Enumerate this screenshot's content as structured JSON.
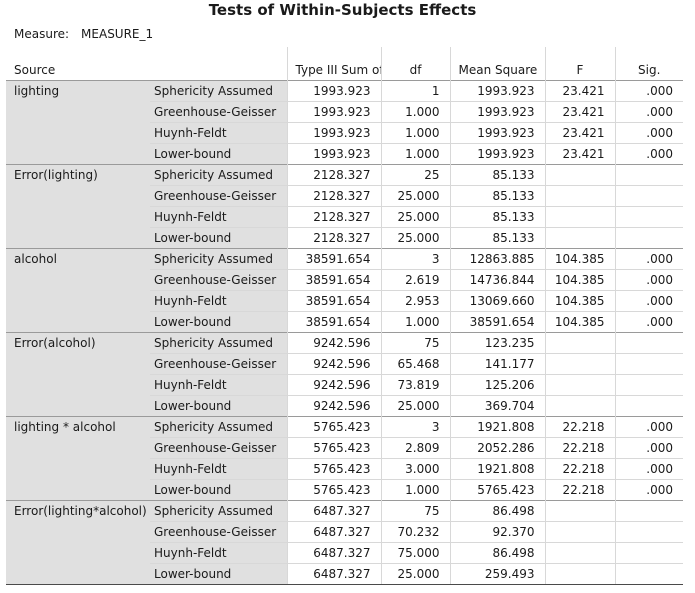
{
  "title": "Tests of Within-Subjects Effects",
  "measure": {
    "label": "Measure:",
    "value": "MEASURE_1"
  },
  "table": {
    "headers": [
      "Source",
      "Type III Sum of Squares",
      "df",
      "Mean Square",
      "F",
      "Sig."
    ],
    "groups": [
      {
        "source": "lighting",
        "rows": [
          [
            "Sphericity Assumed",
            "1993.923",
            "1",
            "1993.923",
            "23.421",
            ".000"
          ],
          [
            "Greenhouse-Geisser",
            "1993.923",
            "1.000",
            "1993.923",
            "23.421",
            ".000"
          ],
          [
            "Huynh-Feldt",
            "1993.923",
            "1.000",
            "1993.923",
            "23.421",
            ".000"
          ],
          [
            "Lower-bound",
            "1993.923",
            "1.000",
            "1993.923",
            "23.421",
            ".000"
          ]
        ]
      },
      {
        "source": "Error(lighting)",
        "rows": [
          [
            "Sphericity Assumed",
            "2128.327",
            "25",
            "85.133"
          ],
          [
            "Greenhouse-Geisser",
            "2128.327",
            "25.000",
            "85.133"
          ],
          [
            "Huynh-Feldt",
            "2128.327",
            "25.000",
            "85.133"
          ],
          [
            "Lower-bound",
            "2128.327",
            "25.000",
            "85.133"
          ]
        ]
      },
      {
        "source": "alcohol",
        "rows": [
          [
            "Sphericity Assumed",
            "38591.654",
            "3",
            "12863.885",
            "104.385",
            ".000"
          ],
          [
            "Greenhouse-Geisser",
            "38591.654",
            "2.619",
            "14736.844",
            "104.385",
            ".000"
          ],
          [
            "Huynh-Feldt",
            "38591.654",
            "2.953",
            "13069.660",
            "104.385",
            ".000"
          ],
          [
            "Lower-bound",
            "38591.654",
            "1.000",
            "38591.654",
            "104.385",
            ".000"
          ]
        ]
      },
      {
        "source": "Error(alcohol)",
        "rows": [
          [
            "Sphericity Assumed",
            "9242.596",
            "75",
            "123.235"
          ],
          [
            "Greenhouse-Geisser",
            "9242.596",
            "65.468",
            "141.177"
          ],
          [
            "Huynh-Feldt",
            "9242.596",
            "73.819",
            "125.206"
          ],
          [
            "Lower-bound",
            "9242.596",
            "25.000",
            "369.704"
          ]
        ]
      },
      {
        "source": "lighting * alcohol",
        "rows": [
          [
            "Sphericity Assumed",
            "5765.423",
            "3",
            "1921.808",
            "22.218",
            ".000"
          ],
          [
            "Greenhouse-Geisser",
            "5765.423",
            "2.809",
            "2052.286",
            "22.218",
            ".000"
          ],
          [
            "Huynh-Feldt",
            "5765.423",
            "3.000",
            "1921.808",
            "22.218",
            ".000"
          ],
          [
            "Lower-bound",
            "5765.423",
            "1.000",
            "5765.423",
            "22.218",
            ".000"
          ]
        ]
      },
      {
        "source": "Error(lighting*alcohol)",
        "rows": [
          [
            "Sphericity Assumed",
            "6487.327",
            "75",
            "86.498"
          ],
          [
            "Greenhouse-Geisser",
            "6487.327",
            "70.232",
            "92.370"
          ],
          [
            "Huynh-Feldt",
            "6487.327",
            "75.000",
            "86.498"
          ],
          [
            "Lower-bound",
            "6487.327",
            "25.000",
            "259.493"
          ]
        ]
      }
    ]
  }
}
